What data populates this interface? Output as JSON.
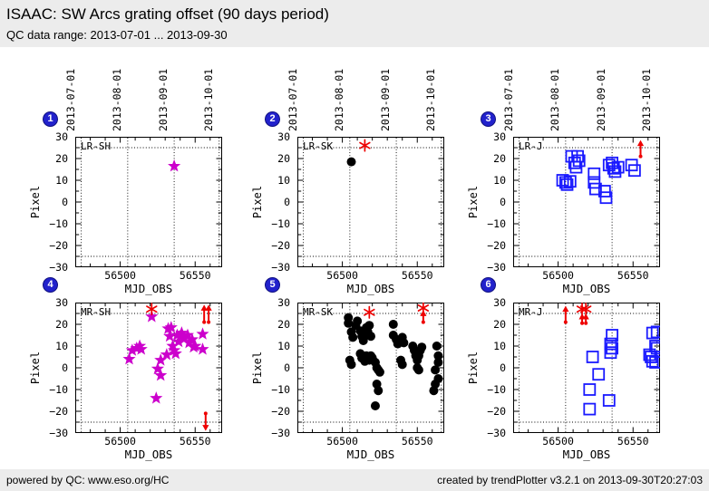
{
  "header": {
    "title": "ISAAC: SW Arcs grating offset (90 days period)",
    "subtitle": "QC data range: 2013-07-01 ... 2013-09-30"
  },
  "footer": {
    "powered_by": "powered by QC: www.eso.org/HC",
    "created_by": "created by trendPlotter v3.2.1 on 2013-09-30T20:27:03"
  },
  "colors": {
    "bar_bg": "#ececec",
    "badge_blue": "#2222cc",
    "magenta": "#cc00cc",
    "blue": "#1a1aff",
    "black": "#000000",
    "red": "#ee0000",
    "plot_bg": "#ffffff",
    "grid": "#000000"
  },
  "axes": {
    "xlabel": "MJD_OBS",
    "ylabel": "Pixel",
    "x_range": [
      56470,
      56568
    ],
    "y_range": [
      -30,
      30
    ],
    "x_ticks": [
      56500,
      56550
    ],
    "y_ticks": [
      30,
      20,
      10,
      0,
      -10,
      -20,
      -30
    ],
    "x_minor_step": 10,
    "y_minor_step": 5,
    "threshold_lines": [
      25,
      -25
    ],
    "date_gridlines": [
      {
        "mjd": 56474,
        "label": "2013-07-01"
      },
      {
        "mjd": 56505,
        "label": "2013-08-01"
      },
      {
        "mjd": 56536,
        "label": "2013-09-01"
      },
      {
        "mjd": 56566,
        "label": "2013-10-01"
      }
    ]
  },
  "chart_data": [
    {
      "type": "scatter",
      "badge": "1",
      "label": "LR-SH",
      "marker": "star",
      "color_key": "magenta",
      "points": [
        [
          56536,
          16.5
        ]
      ],
      "asterisks": [],
      "arrows": []
    },
    {
      "type": "scatter",
      "badge": "2",
      "label": "LR-SK",
      "marker": "circle",
      "color_key": "black",
      "points": [
        [
          56506,
          18.5
        ]
      ],
      "asterisks": [
        [
          56515,
          26
        ]
      ],
      "arrows": []
    },
    {
      "type": "scatter",
      "badge": "3",
      "label": "LR-J",
      "marker": "square",
      "color_key": "blue",
      "points": [
        [
          56503,
          10
        ],
        [
          56505,
          9
        ],
        [
          56506,
          8
        ],
        [
          56508,
          9.5
        ],
        [
          56509,
          21
        ],
        [
          56511,
          18
        ],
        [
          56512,
          16
        ],
        [
          56513,
          21
        ],
        [
          56514,
          19
        ],
        [
          56524,
          13
        ],
        [
          56524,
          9
        ],
        [
          56525,
          6
        ],
        [
          56531,
          5
        ],
        [
          56532,
          2
        ],
        [
          56534,
          17
        ],
        [
          56536,
          18
        ],
        [
          56537,
          15.5
        ],
        [
          56538,
          14
        ],
        [
          56540,
          16
        ],
        [
          56549,
          17
        ],
        [
          56551,
          14.5
        ]
      ],
      "asterisks": [],
      "arrows": [
        {
          "x": 56555,
          "from": 21,
          "to": 28.5
        }
      ]
    },
    {
      "type": "scatter",
      "badge": "4",
      "label": "MR-SH",
      "marker": "star",
      "color_key": "magenta",
      "points": [
        [
          56506,
          4
        ],
        [
          56508,
          8
        ],
        [
          56511,
          9
        ],
        [
          56513,
          10
        ],
        [
          56514,
          8.5
        ],
        [
          56521,
          23.5
        ],
        [
          56525,
          -0.5
        ],
        [
          56527,
          3.5
        ],
        [
          56527,
          -3.5
        ],
        [
          56524,
          -14
        ],
        [
          56531,
          6
        ],
        [
          56532,
          18
        ],
        [
          56534,
          18.5
        ],
        [
          56533,
          14.5
        ],
        [
          56535,
          10
        ],
        [
          56536,
          8
        ],
        [
          56537,
          6.5
        ],
        [
          56538,
          15
        ],
        [
          56539,
          12
        ],
        [
          56540,
          14.5
        ],
        [
          56541,
          16
        ],
        [
          56543,
          13.5
        ],
        [
          56545,
          15
        ],
        [
          56546,
          11.5
        ],
        [
          56548,
          13
        ],
        [
          56549,
          9.5
        ],
        [
          56550,
          10
        ],
        [
          56555,
          15.5
        ],
        [
          56555,
          8.5
        ]
      ],
      "asterisks": [
        [
          56521,
          27
        ]
      ],
      "arrows": [
        {
          "x": 56556,
          "from": 21,
          "to": 29
        },
        {
          "x": 56559,
          "from": 21,
          "to": 29
        },
        {
          "x": 56557,
          "from": -21,
          "to": -29
        }
      ]
    },
    {
      "type": "scatter",
      "badge": "5",
      "label": "MR-SK",
      "marker": "circle",
      "color_key": "black",
      "points": [
        [
          56504,
          23
        ],
        [
          56504,
          20.5
        ],
        [
          56506,
          16.5
        ],
        [
          56507,
          14
        ],
        [
          56505,
          3.5
        ],
        [
          56506,
          1.5
        ],
        [
          56509,
          19.5
        ],
        [
          56510,
          21.5
        ],
        [
          56512,
          17
        ],
        [
          56513,
          14.5
        ],
        [
          56514,
          12.5
        ],
        [
          56515,
          15
        ],
        [
          56516,
          18.5
        ],
        [
          56517,
          16.5
        ],
        [
          56518,
          19.5
        ],
        [
          56519,
          14.5
        ],
        [
          56512,
          6.5
        ],
        [
          56513,
          4.5
        ],
        [
          56515,
          3
        ],
        [
          56516,
          5.5
        ],
        [
          56518,
          3.5
        ],
        [
          56519,
          5.5
        ],
        [
          56520,
          4.5
        ],
        [
          56522,
          2.5
        ],
        [
          56523,
          0
        ],
        [
          56524,
          -1
        ],
        [
          56525,
          -2
        ],
        [
          56523,
          -7.5
        ],
        [
          56524,
          -10.5
        ],
        [
          56522,
          -17.5
        ],
        [
          56534,
          20
        ],
        [
          56534,
          15
        ],
        [
          56536,
          13
        ],
        [
          56537,
          11
        ],
        [
          56540,
          14
        ],
        [
          56541,
          11.5
        ],
        [
          56539,
          3.5
        ],
        [
          56540,
          1.5
        ],
        [
          56547,
          10
        ],
        [
          56548,
          8
        ],
        [
          56549,
          5.5
        ],
        [
          56550,
          3.5
        ],
        [
          56551,
          5.5
        ],
        [
          56552,
          8
        ],
        [
          56553,
          9.5
        ],
        [
          56550,
          0
        ],
        [
          56551,
          -1
        ],
        [
          56563,
          10
        ],
        [
          56564,
          5.5
        ],
        [
          56564,
          2.5
        ],
        [
          56562,
          -1
        ],
        [
          56564,
          -5
        ],
        [
          56562,
          -7.5
        ],
        [
          56561,
          -10.5
        ]
      ],
      "asterisks": [
        [
          56518,
          25.5
        ],
        [
          56554,
          27.5
        ]
      ],
      "arrows": [
        {
          "x": 56554,
          "from": 21,
          "to": 26.5
        }
      ]
    },
    {
      "type": "scatter",
      "badge": "6",
      "label": "MR-J",
      "marker": "square",
      "color_key": "blue",
      "points": [
        [
          56523,
          5
        ],
        [
          56527,
          -3
        ],
        [
          56521,
          -10
        ],
        [
          56521,
          -19
        ],
        [
          56534,
          -15
        ],
        [
          56536,
          15
        ],
        [
          56535,
          11
        ],
        [
          56536,
          9
        ],
        [
          56535,
          7
        ],
        [
          56563,
          16
        ],
        [
          56566,
          16.5
        ],
        [
          56565,
          10
        ],
        [
          56566,
          9
        ],
        [
          56561,
          6
        ],
        [
          56562,
          5
        ],
        [
          56563,
          3
        ],
        [
          56565,
          2.5
        ]
      ],
      "asterisks": [
        [
          56516,
          27
        ],
        [
          56518.5,
          27
        ]
      ],
      "arrows": [
        {
          "x": 56505,
          "from": 21,
          "to": 28.5
        },
        {
          "x": 56516,
          "from": 20.5,
          "to": 25
        },
        {
          "x": 56518.5,
          "from": 20.5,
          "to": 25
        }
      ]
    }
  ]
}
